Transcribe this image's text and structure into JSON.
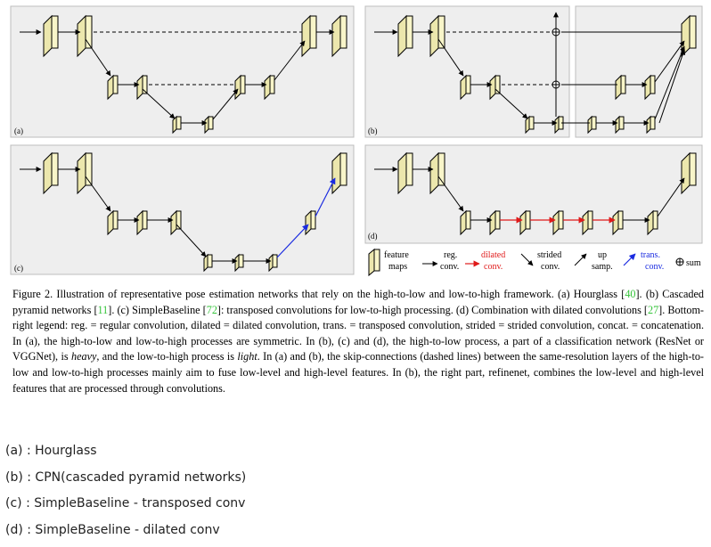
{
  "figure": {
    "panels": [
      {
        "id": "a",
        "label": "(a)"
      },
      {
        "id": "b",
        "label": "(b)"
      },
      {
        "id": "c",
        "label": "(c)"
      },
      {
        "id": "d",
        "label": "(d)"
      }
    ],
    "legend": {
      "feature_maps": [
        "feature",
        "maps"
      ],
      "reg_conv": [
        "reg.",
        "conv."
      ],
      "dilated_conv": [
        "dilated",
        "conv."
      ],
      "strided_conv": [
        "strided",
        "conv."
      ],
      "up_samp": [
        "up",
        "samp."
      ],
      "trans_conv": [
        "trans.",
        "conv."
      ],
      "sum": "sum"
    },
    "colors": {
      "panel_bg": "#eeeeee",
      "feature_map": "#f8f5c9",
      "dilated": "#e01a1a",
      "trans": "#1a2be0",
      "citation": "#36c43b"
    }
  },
  "caption": {
    "p1": "Figure 2. Illustration of representative pose estimation networks that rely on the high-to-low and low-to-high framework. (a) Hourglass [",
    "c1": "40",
    "p2": "]. (b) Cascaded pyramid networks [",
    "c2": "11",
    "p3": "]. (c) SimpleBaseline [",
    "c3": "72",
    "p4": "]: transposed convolutions for low-to-high processing. (d) Combination with dilated convolutions [",
    "c4": "27",
    "p5": "]. Bottom-right legend: reg. = regular convolution, dilated = dilated convolution, trans. = transposed convolution, strided = strided convolution, concat. = concatenation. In (a), the high-to-low and low-to-high processes are symmetric. In (b), (c) and (d), the high-to-low process, a part of a classification network (ResNet or VGGNet), is ",
    "em1": "heavy",
    "p6": ", and the low-to-high process is ",
    "em2": "light",
    "p7": ". In (a) and (b), the skip-connections (dashed lines) between the same-resolution layers of the high-to-low and low-to-high processes mainly aim to fuse low-level and high-level features. In (b), the right part, refinenet, combines the low-level and high-level features that are processed through convolutions."
  },
  "notes": [
    "(a) : Hourglass",
    "(b) : CPN(cascaded pyramid networks)",
    "(c) : SimpleBaseline - transposed conv",
    "(d) : SimpleBaseline - dilated conv"
  ]
}
